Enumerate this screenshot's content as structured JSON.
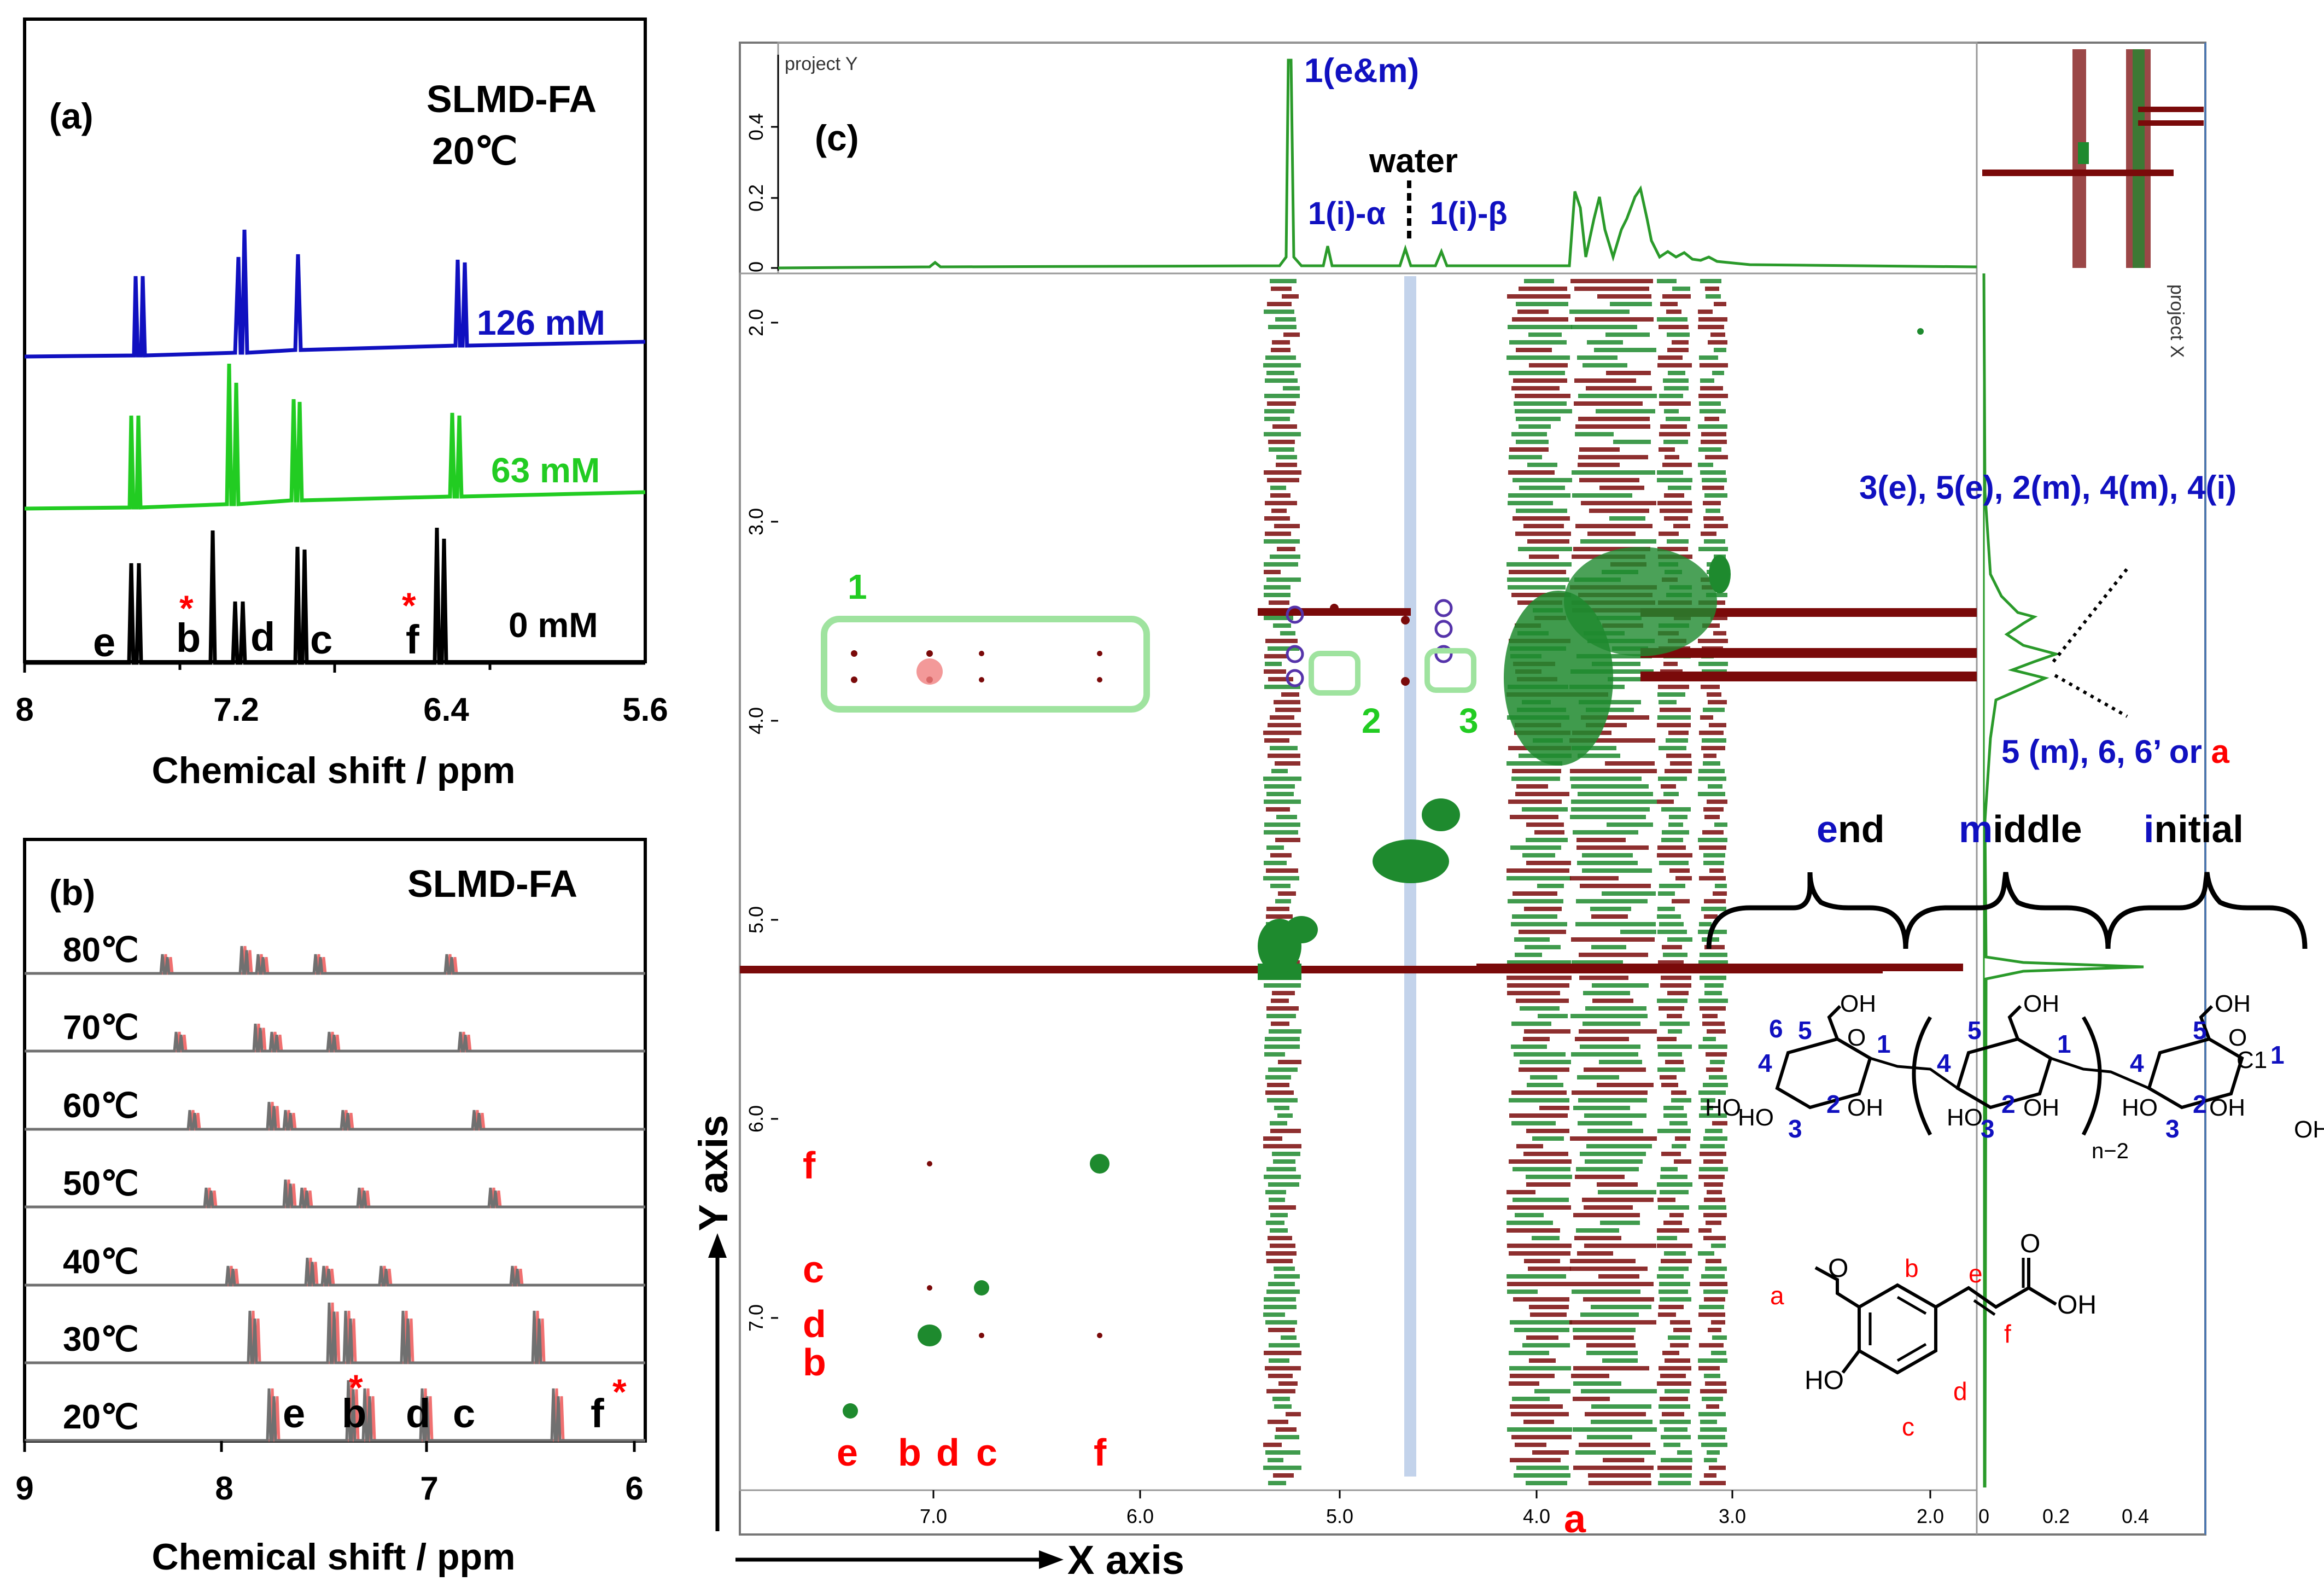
{
  "colors": {
    "blue": "#1010c0",
    "green": "#22cc22",
    "black": "#000000",
    "red": "#ff0000",
    "darkred": "#7a0a0a",
    "darkgreen": "#1e8a2e",
    "cyan_band": "#b8cbe8",
    "projgreen": "#2a9a2a"
  },
  "panel_a": {
    "label": "(a)",
    "sample": "SLMD-FA",
    "temperature": "20℃",
    "xlabel": "Chemical shift / ppm",
    "xticks": [
      "8",
      "7.2",
      "6.4",
      "5.6"
    ],
    "traces": [
      {
        "name": "126 mM",
        "color": "#1010c0"
      },
      {
        "name": "63 mM",
        "color": "#22cc22"
      },
      {
        "name": "0 mM",
        "color": "#000000"
      }
    ],
    "peak_letters": [
      "e",
      "b",
      "d",
      "c",
      "f"
    ],
    "asterisk": "*"
  },
  "panel_b": {
    "label": "(b)",
    "sample": "SLMD-FA",
    "xlabel": "Chemical shift / ppm",
    "xticks": [
      "9",
      "8",
      "7",
      "6"
    ],
    "temperatures": [
      "80℃",
      "70℃",
      "60℃",
      "50℃",
      "40℃",
      "30℃",
      "20℃"
    ],
    "peak_letters": [
      "e",
      "b",
      "d",
      "c",
      "f"
    ],
    "asterisk": "*"
  },
  "panel_c": {
    "label": "(c)",
    "project_y": "project Y",
    "project_x": "project X",
    "proj_yticks": [
      "0.4",
      "0.2",
      "0"
    ],
    "yticks": [
      "2.0",
      "3.0",
      "4.0",
      "5.0",
      "6.0",
      "7.0"
    ],
    "xticks": [
      "7.0",
      "6.0",
      "5.0",
      "4.0",
      "3.0",
      "2.0"
    ],
    "proj_xticks": [
      "0",
      "0.2",
      "0.4"
    ],
    "xaxis": "X axis",
    "yaxis": "Y axis",
    "water": "water",
    "top_labels": {
      "e_m": "1(e&m)",
      "alpha": "1(i)-α",
      "beta": "1(i)-β"
    },
    "box_labels": [
      "1",
      "2",
      "3"
    ],
    "side_label_1": "3(e), 5(e), 2(m), 4(m), 4(i)",
    "side_label_2_main": "5 (m), 6, 6’ or ",
    "side_label_2_a": "a",
    "bottom_a": "a",
    "row_letters": [
      "f",
      "c",
      "d",
      "b"
    ],
    "col_letters": [
      "e",
      "b",
      "d",
      "c",
      "f"
    ]
  },
  "structure": {
    "end": "end",
    "middle": "middle",
    "initial": "initial",
    "unit_numbers": [
      "1",
      "2",
      "3",
      "4",
      "5",
      "6"
    ],
    "oh": "OH",
    "ho": "HO",
    "repeat": "n−2",
    "c1": "C1",
    "o": "O"
  },
  "ferulic": {
    "letters": [
      "a",
      "b",
      "c",
      "d",
      "e",
      "f"
    ],
    "oh": "OH",
    "ho": "HO",
    "o": "O"
  }
}
